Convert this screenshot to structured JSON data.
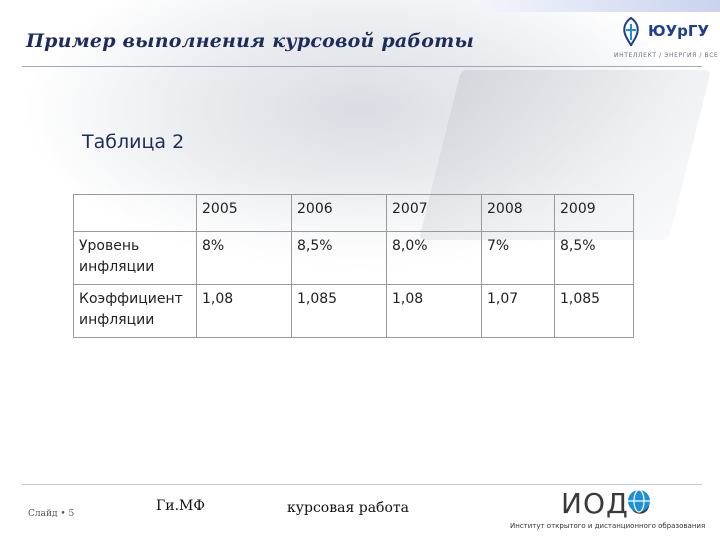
{
  "slide": {
    "title": "Пример выполнения курсовой работы",
    "logo_name": "ЮУрГУ",
    "logo_motto": "ИНТЕЛЛЕКТ / ЭНЕРГИЯ / ВСЕ",
    "table_caption": "Таблица 2"
  },
  "table": {
    "header": [
      "",
      "2005",
      "2006",
      "2007",
      "2008",
      "2009"
    ],
    "rows": [
      [
        "Уровень инфляции",
        "8%",
        "8,5%",
        "8,0%",
        "7%",
        "8,5%"
      ],
      [
        "Коэффициент инфляции",
        "1,08",
        "1,085",
        "1,08",
        "1,07",
        "1,085"
      ]
    ]
  },
  "footer": {
    "slide_number": "Слайд • 5",
    "author": "Ги.МФ",
    "subject": "курсовая работа",
    "org_logo": "ИОДО",
    "institute": "Институт открытого и дистанционного образования"
  },
  "colors": {
    "title": "#1f2c5a",
    "logo_blue": "#1f3f8a",
    "logo_accent": "#1e90d6"
  },
  "icons": {
    "logo_mark": "university-emblem-icon",
    "org_mark": "globe-o-icon"
  }
}
